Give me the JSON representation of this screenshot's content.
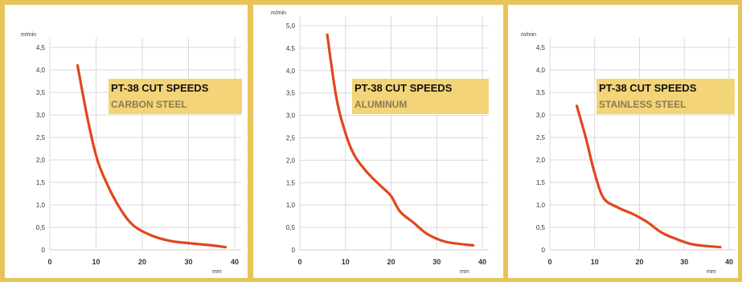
{
  "chart_data": [
    {
      "type": "line",
      "title": "PT-38 CUT SPEEDS",
      "subtitle": "CARBON STEEL",
      "ylabel": "m/min",
      "xlabel": "mm",
      "xlim": [
        0,
        40
      ],
      "ylim": [
        0,
        4.5
      ],
      "x_ticks": [
        "0",
        "10",
        "20",
        "30",
        "40"
      ],
      "y_ticks": [
        "0",
        "0,5",
        "1,0",
        "1,5",
        "2,0",
        "2,5",
        "3,0",
        "3,5",
        "4,0",
        "4,5"
      ],
      "series": [
        {
          "color": "#e0471c",
          "x": [
            6,
            8,
            10,
            12,
            15,
            18,
            22,
            26,
            30,
            35,
            38
          ],
          "y": [
            4.1,
            3.0,
            2.1,
            1.55,
            0.95,
            0.55,
            0.32,
            0.2,
            0.15,
            0.1,
            0.06
          ]
        }
      ]
    },
    {
      "type": "line",
      "title": "PT-38 CUT SPEEDS",
      "subtitle": "ALUMINUM",
      "ylabel": "m/min",
      "xlabel": "mm",
      "xlim": [
        0,
        40
      ],
      "ylim": [
        0,
        5.0
      ],
      "x_ticks": [
        "0",
        "10",
        "20",
        "30",
        "40"
      ],
      "y_ticks": [
        "0",
        "0,5",
        "1,0",
        "1,5",
        "2,0",
        "2,5",
        "3,0",
        "3,5",
        "4,0",
        "4,5",
        "5,0"
      ],
      "series": [
        {
          "color": "#e0471c",
          "x": [
            6,
            8,
            10,
            12,
            15,
            18,
            20,
            22,
            25,
            28,
            32,
            38
          ],
          "y": [
            4.8,
            3.4,
            2.6,
            2.1,
            1.7,
            1.4,
            1.2,
            0.85,
            0.6,
            0.35,
            0.18,
            0.1
          ]
        }
      ]
    },
    {
      "type": "line",
      "title": "PT-38 CUT SPEEDS",
      "subtitle": "STAINLESS STEEL",
      "ylabel": "m/min",
      "xlabel": "mm",
      "xlim": [
        0,
        40
      ],
      "ylim": [
        0,
        4.5
      ],
      "x_ticks": [
        "0",
        "10",
        "20",
        "30",
        "40"
      ],
      "y_ticks": [
        "0",
        "0,5",
        "1,0",
        "1,5",
        "2,0",
        "2,5",
        "3,0",
        "3,5",
        "4,0",
        "4,5"
      ],
      "series": [
        {
          "color": "#e0471c",
          "x": [
            6,
            8,
            10,
            12,
            15,
            18,
            20,
            22,
            25,
            28,
            32,
            38
          ],
          "y": [
            3.2,
            2.5,
            1.7,
            1.15,
            0.95,
            0.82,
            0.72,
            0.6,
            0.38,
            0.25,
            0.12,
            0.06
          ]
        }
      ]
    }
  ]
}
